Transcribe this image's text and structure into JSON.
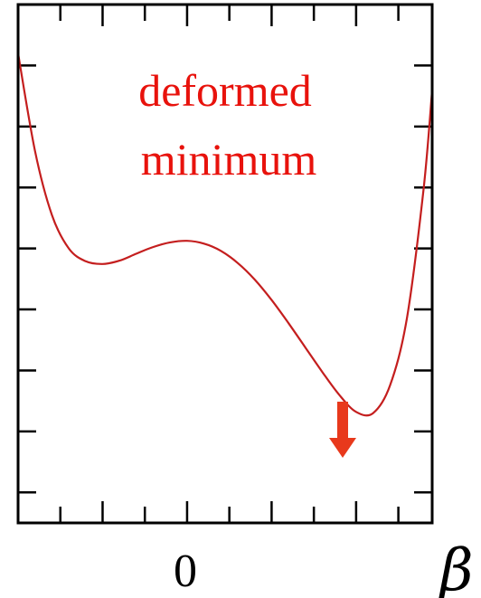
{
  "chart_data": {
    "type": "line",
    "title": "",
    "xlabel": "β",
    "ylabel": "",
    "xlim": [
      -1,
      1.45
    ],
    "ylim": [
      -0.7,
      1.0
    ],
    "xticks": [
      {
        "value": 0,
        "label": "0"
      }
    ],
    "grid": false,
    "legend": "none",
    "series": [
      {
        "color": "#c41e1e",
        "x": [
          -1.0,
          -0.9,
          -0.8,
          -0.7,
          -0.6,
          -0.5,
          -0.4,
          -0.3,
          -0.2,
          -0.1,
          0.0,
          0.1,
          0.2,
          0.3,
          0.4,
          0.5,
          0.6,
          0.7,
          0.8,
          0.9,
          1.0,
          1.1,
          1.2,
          1.3,
          1.4,
          1.45
        ],
        "y": [
          0.84,
          0.52,
          0.31,
          0.2,
          0.158,
          0.149,
          0.16,
          0.183,
          0.205,
          0.22,
          0.225,
          0.216,
          0.192,
          0.152,
          0.098,
          0.031,
          -0.045,
          -0.125,
          -0.205,
          -0.28,
          -0.336,
          -0.34,
          -0.25,
          -0.03,
          0.4,
          0.72
        ]
      }
    ],
    "annotations": [
      {
        "text": "deformed",
        "color": "#e8120c"
      },
      {
        "text": "minimum",
        "color": "#e8120c"
      }
    ],
    "arrow_target": {
      "x": 0.95,
      "y": -0.336,
      "color": "#e8391c"
    }
  }
}
